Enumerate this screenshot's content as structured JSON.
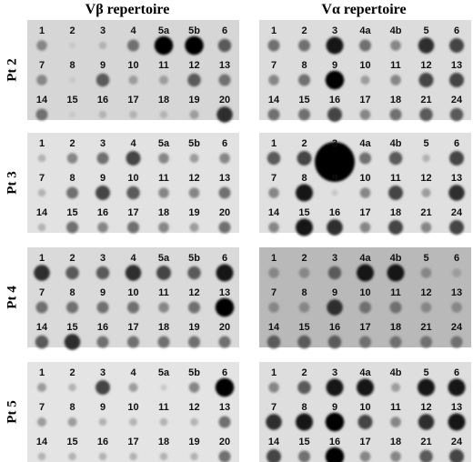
{
  "headers": [
    "Vβ repertoire",
    "Vα repertoire"
  ],
  "rows": [
    "Pt 2",
    "Pt 3",
    "Pt 4",
    "Pt 5"
  ],
  "labels": [
    [
      [
        "1",
        "2",
        "3",
        "4",
        "5a",
        "5b",
        "6"
      ],
      [
        "7",
        "8",
        "9",
        "10",
        "11",
        "12",
        "13"
      ],
      [
        "14",
        "15",
        "16",
        "17",
        "18",
        "19",
        "20"
      ]
    ],
    [
      [
        "1",
        "2",
        "3",
        "4a",
        "4b",
        "5",
        "6"
      ],
      [
        "7",
        "8",
        "9",
        "10",
        "11",
        "12",
        "13"
      ],
      [
        "14",
        "15",
        "16",
        "17",
        "18",
        "21",
        "24"
      ]
    ]
  ]
}
